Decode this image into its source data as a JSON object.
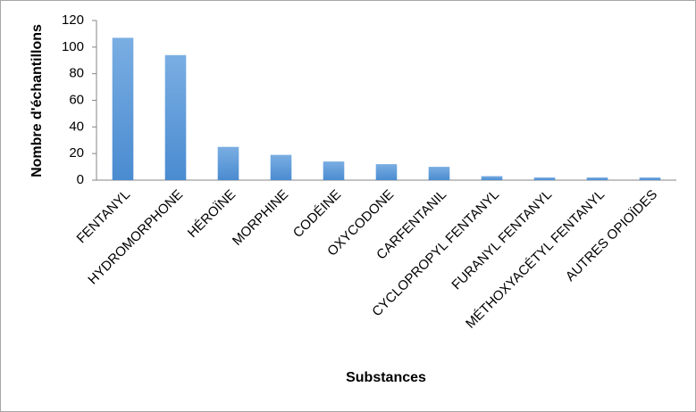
{
  "chart_data": {
    "type": "bar",
    "categories": [
      "FENTANYL",
      "HYDROMORPHONE",
      "HÉROÏNE",
      "MORPHINE",
      "CODÉINE",
      "OXYCODONE",
      "CARFENTANIL",
      "CYCLOPROPYL FENTANYL",
      "FURANYL FENTANYL",
      "MÉTHOXYACÉTYL FENTANYL",
      "AUTRES OPIOÏDES"
    ],
    "values": [
      107,
      94,
      25,
      19,
      14,
      12,
      10,
      3,
      2,
      2,
      2
    ],
    "color": "#5b9bd5",
    "ylim": [
      0,
      120
    ],
    "yticks": [
      0,
      20,
      40,
      60,
      80,
      100,
      120
    ],
    "xlabel": "Substances",
    "ylabel": "Nombre d'échantillons",
    "grid": false
  }
}
